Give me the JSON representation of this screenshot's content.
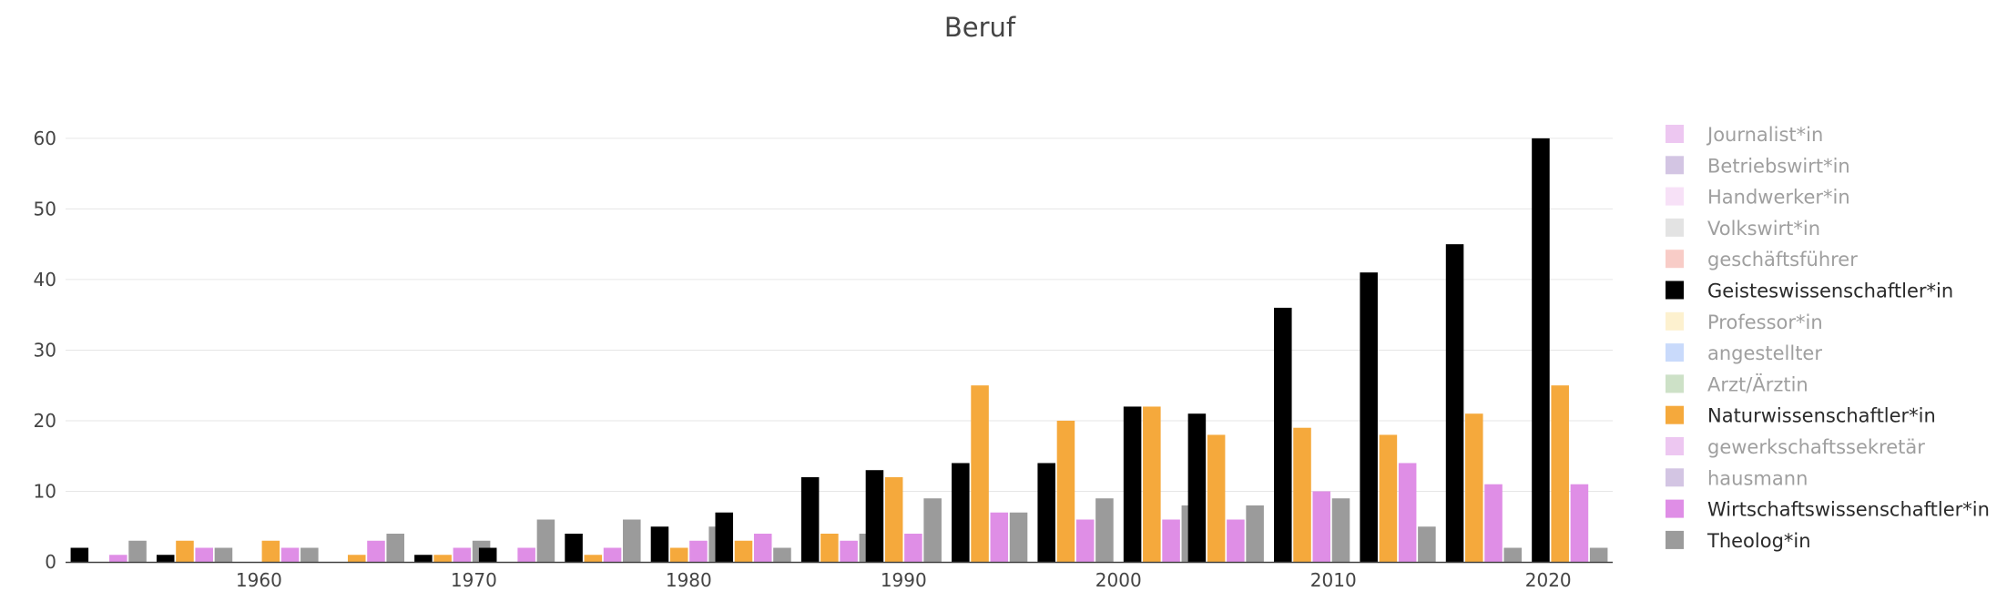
{
  "chart_data": {
    "type": "bar",
    "title": "Beruf",
    "xlabel": "",
    "ylabel": "",
    "ylim": [
      0,
      60.5
    ],
    "xlim": [
      1951,
      2023
    ],
    "xticks": [
      1960,
      1970,
      1980,
      1990,
      2000,
      2010,
      2020
    ],
    "yticks": [
      0,
      10,
      20,
      30,
      40,
      50,
      60
    ],
    "grid": true,
    "legend_position": "right",
    "x": [
      1953,
      1957,
      1961,
      1965,
      1969,
      1972,
      1976,
      1980,
      1983,
      1987,
      1990,
      1994,
      1998,
      2002,
      2005,
      2009,
      2013,
      2017,
      2021
    ],
    "series": [
      {
        "name": "Journalist*in",
        "color": "#dc8fe3",
        "visible": false
      },
      {
        "name": "Betriebswirt*in",
        "color": "#a88bc8",
        "visible": false
      },
      {
        "name": "Handwerker*in",
        "color": "#efc3ef",
        "visible": false
      },
      {
        "name": "Volkswirt*in",
        "color": "#c8c8c8",
        "visible": false
      },
      {
        "name": "geschäftsführer",
        "color": "#f29a8f",
        "visible": false
      },
      {
        "name": "Geisteswissenschaftler*in",
        "color": "#000000",
        "visible": true,
        "values": [
          2,
          1,
          0,
          0,
          1,
          2,
          4,
          5,
          7,
          12,
          13,
          14,
          14,
          22,
          21,
          36,
          41,
          45,
          60
        ]
      },
      {
        "name": "Professor*in",
        "color": "#fbe3a0",
        "visible": false
      },
      {
        "name": "angestellter",
        "color": "#93b6f7",
        "visible": false
      },
      {
        "name": "Arzt/Ärztin",
        "color": "#9cc490",
        "visible": false
      },
      {
        "name": "Naturwissenschaftler*in",
        "color": "#f5a93c",
        "visible": true,
        "values": [
          0,
          3,
          3,
          1,
          1,
          0,
          1,
          2,
          3,
          4,
          12,
          25,
          20,
          22,
          18,
          19,
          18,
          21,
          25
        ]
      },
      {
        "name": "gewerkschaftssekretär",
        "color": "#dc8fe3",
        "visible": false
      },
      {
        "name": "hausmann",
        "color": "#a88bc8",
        "visible": false
      },
      {
        "name": "Wirtschaftswissenschaftler*in",
        "color": "#df8ee6",
        "visible": true,
        "values": [
          1,
          2,
          2,
          3,
          2,
          2,
          2,
          3,
          4,
          3,
          4,
          7,
          6,
          6,
          6,
          10,
          14,
          11,
          11
        ]
      },
      {
        "name": "Theolog*in",
        "color": "#9b9b9b",
        "visible": true,
        "values": [
          3,
          2,
          2,
          4,
          3,
          6,
          6,
          5,
          2,
          4,
          9,
          7,
          9,
          8,
          8,
          9,
          5,
          2,
          2
        ]
      }
    ]
  }
}
